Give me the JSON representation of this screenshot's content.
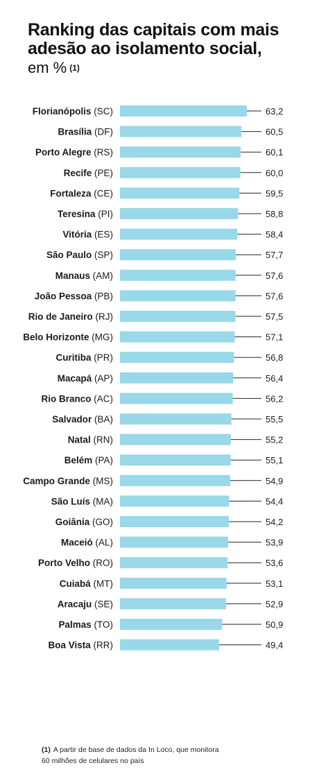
{
  "title_lines": [
    "Ranking das capitais com mais",
    "adesão ao isolamento social,"
  ],
  "subtitle": "em %",
  "subtitle_note_mark": "(1)",
  "footnote": {
    "mark": "(1)",
    "line1": "A partir de base de dados da In Loco, que monitora",
    "line2": "60 milhões de celulares no país"
  },
  "colors": {
    "bar": "#98d8e8",
    "leader_line": "#222222",
    "text": "#1a1a1a"
  },
  "chart_data": {
    "type": "bar",
    "orientation": "horizontal",
    "title": "Ranking das capitais com mais adesão ao isolamento social, em %",
    "xlabel": "",
    "ylabel": "",
    "xlim": [
      0,
      63.2
    ],
    "grid": false,
    "legend": "none",
    "categories": [
      {
        "city": "Florianópolis",
        "uf": "(SC)"
      },
      {
        "city": "Brasília",
        "uf": "(DF)"
      },
      {
        "city": "Porto Alegre",
        "uf": "(RS)"
      },
      {
        "city": "Recife",
        "uf": "(PE)"
      },
      {
        "city": "Fortaleza",
        "uf": "(CE)"
      },
      {
        "city": "Teresina",
        "uf": "(PI)"
      },
      {
        "city": "Vitória",
        "uf": "(ES)"
      },
      {
        "city": "São Paulo",
        "uf": "(SP)"
      },
      {
        "city": "Manaus",
        "uf": "(AM)"
      },
      {
        "city": "João Pessoa",
        "uf": "(PB)"
      },
      {
        "city": "Rio de Janeiro",
        "uf": "(RJ)"
      },
      {
        "city": "Belo Horizonte",
        "uf": "(MG)"
      },
      {
        "city": "Curitiba",
        "uf": "(PR)"
      },
      {
        "city": "Macapá",
        "uf": "(AP)"
      },
      {
        "city": "Rio Branco",
        "uf": "(AC)"
      },
      {
        "city": "Salvador",
        "uf": "(BA)"
      },
      {
        "city": "Natal",
        "uf": "(RN)"
      },
      {
        "city": "Belém",
        "uf": "(PA)"
      },
      {
        "city": "Campo Grande",
        "uf": "(MS)"
      },
      {
        "city": "São Luís",
        "uf": "(MA)"
      },
      {
        "city": "Goiânia",
        "uf": "(GO)"
      },
      {
        "city": "Maceió",
        "uf": "(AL)"
      },
      {
        "city": "Porto Velho",
        "uf": "(RO)"
      },
      {
        "city": "Cuiabá",
        "uf": "(MT)"
      },
      {
        "city": "Aracaju",
        "uf": "(SE)"
      },
      {
        "city": "Palmas",
        "uf": "(TO)"
      },
      {
        "city": "Boa Vista",
        "uf": "(RR)"
      }
    ],
    "values": [
      63.2,
      60.5,
      60.1,
      60.0,
      59.5,
      58.8,
      58.4,
      57.7,
      57.6,
      57.6,
      57.5,
      57.1,
      56.8,
      56.4,
      56.2,
      55.5,
      55.2,
      55.1,
      54.9,
      54.4,
      54.2,
      53.9,
      53.6,
      53.1,
      52.9,
      50.9,
      49.4
    ],
    "value_labels": [
      "63,2",
      "60,5",
      "60,1",
      "60,0",
      "59,5",
      "58,8",
      "58,4",
      "57,7",
      "57,6",
      "57,6",
      "57,5",
      "57,1",
      "56,8",
      "56,4",
      "56,2",
      "55,5",
      "55,2",
      "55,1",
      "54,9",
      "54,4",
      "54,2",
      "53,9",
      "53,6",
      "53,1",
      "52,9",
      "50,9",
      "49,4"
    ]
  }
}
